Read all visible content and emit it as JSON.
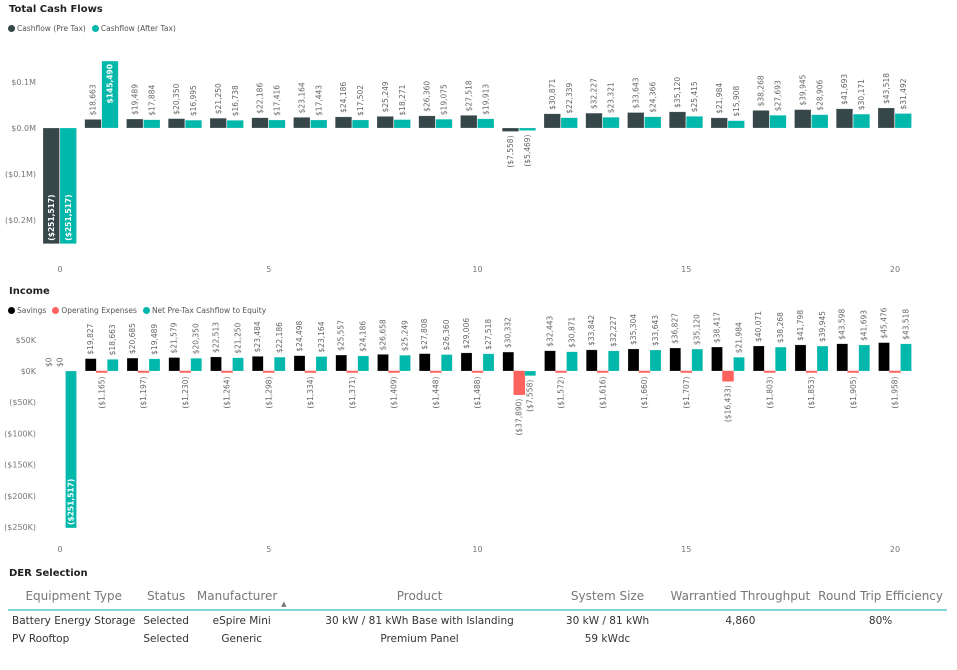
{
  "chart_data": [
    {
      "type": "bar",
      "title": "Total Cash Flows",
      "categories": [
        0,
        1,
        2,
        3,
        4,
        5,
        6,
        7,
        8,
        9,
        10,
        11,
        12,
        13,
        14,
        15,
        16,
        17,
        18,
        19,
        20
      ],
      "x_tick_labels": [
        "0",
        "5",
        "10",
        "15",
        "20"
      ],
      "y_tick_labels": [
        "$0.1M",
        "$0.0M",
        "($0.1M)",
        "($0.2M)"
      ],
      "y_ticks": [
        100000,
        0,
        -100000,
        -200000
      ],
      "ylim": [
        -260000,
        160000
      ],
      "legend": "top-left",
      "series": [
        {
          "name": "Cashflow (Pre Tax)",
          "color": "#374649",
          "values": [
            -251517,
            18663,
            19489,
            20350,
            21250,
            22186,
            23164,
            24186,
            25249,
            26360,
            27518,
            -7558,
            30871,
            32227,
            33643,
            35120,
            21984,
            38268,
            39945,
            41693,
            43518
          ]
        },
        {
          "name": "Cashflow (After Tax)",
          "color": "#01b8aa",
          "values": [
            -251517,
            145490,
            17884,
            16995,
            16738,
            17416,
            17443,
            17502,
            18271,
            19075,
            19913,
            -5469,
            22339,
            23321,
            24366,
            25415,
            15908,
            27693,
            28906,
            30171,
            31492
          ]
        }
      ]
    },
    {
      "type": "bar",
      "title": "Income",
      "categories": [
        0,
        1,
        2,
        3,
        4,
        5,
        6,
        7,
        8,
        9,
        10,
        11,
        12,
        13,
        14,
        15,
        16,
        17,
        18,
        19,
        20
      ],
      "x_tick_labels": [
        "0",
        "5",
        "10",
        "15",
        "20"
      ],
      "y_tick_labels": [
        "$50K",
        "$0K",
        "($50K)",
        "($100K)",
        "($150K)",
        "($200K)",
        "($250K)"
      ],
      "y_ticks": [
        50000,
        0,
        -50000,
        -100000,
        -150000,
        -200000,
        -250000
      ],
      "ylim": [
        -260000,
        80000
      ],
      "legend": "top-left",
      "series": [
        {
          "name": "Savings",
          "color": "#000000",
          "values": [
            0,
            19827,
            20685,
            21579,
            22513,
            23484,
            24498,
            25557,
            26658,
            27808,
            29006,
            30332,
            32443,
            33842,
            35304,
            36827,
            38417,
            40071,
            41798,
            43598,
            45476
          ]
        },
        {
          "name": "Operating Expenses",
          "color": "#fd625e",
          "values": [
            0,
            -1165,
            -1197,
            -1230,
            -1264,
            -1298,
            -1334,
            -1371,
            -1409,
            -1448,
            -1488,
            -37890,
            -1572,
            -1616,
            -1660,
            -1707,
            -16433,
            -1803,
            -1853,
            -1905,
            -1958
          ]
        },
        {
          "name": "Net Pre-Tax Cashflow to Equity",
          "color": "#01b8aa",
          "values": [
            -251517,
            18663,
            19489,
            20350,
            21250,
            22186,
            23164,
            24186,
            25249,
            26360,
            27518,
            -7558,
            30871,
            32227,
            33643,
            35120,
            21984,
            38268,
            39945,
            41693,
            43518
          ]
        }
      ]
    }
  ],
  "der": {
    "title": "DER Selection",
    "headers": [
      "Equipment Type",
      "Status",
      "Manufacturer",
      "Product",
      "System Size",
      "Warrantied Throughput",
      "Round Trip Efficiency"
    ],
    "rows": [
      [
        "Battery Energy Storage",
        "Selected",
        "eSpire Mini",
        "30 kW / 81 kWh Base with Islanding",
        "30 kW / 81 kWh",
        "4,860",
        "80%"
      ],
      [
        "PV Rooftop",
        "Selected",
        "Generic",
        "Premium Panel",
        "59 kWdc",
        "",
        ""
      ]
    ]
  }
}
